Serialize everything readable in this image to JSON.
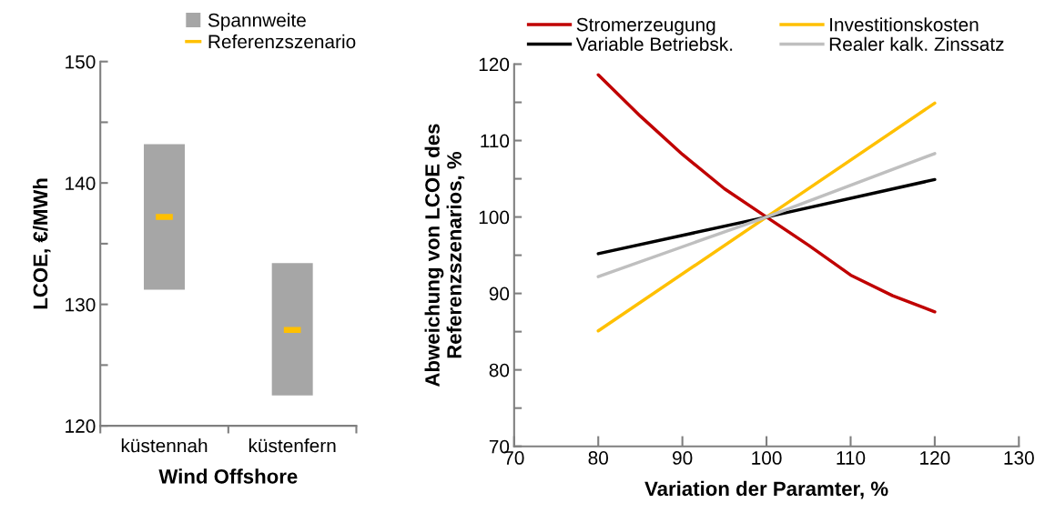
{
  "chart_data": [
    {
      "type": "bar",
      "xlabel": "Wind Offshore",
      "ylabel": "LCOE, €/MWh",
      "categories": [
        "küstennah",
        "küstenfern"
      ],
      "series": [
        {
          "name": "Spannweite",
          "type": "bar",
          "color": "#a6a6a6",
          "base": [
            131.2,
            122.5
          ],
          "values": [
            12.0,
            10.9
          ]
        },
        {
          "name": "Referenzszenario",
          "type": "scatter",
          "color": "#ffc000",
          "values": [
            137.2,
            127.9
          ]
        }
      ],
      "ylim": [
        120,
        150
      ],
      "yticks": [
        120,
        {
          "value": 125,
          "label": null
        },
        130,
        {
          "value": 135,
          "label": null
        },
        140,
        {
          "value": 145,
          "label": null
        },
        150
      ],
      "grid": false,
      "legend": "top"
    },
    {
      "type": "line",
      "xlabel": "Variation der Paramter, %",
      "ylabel": "Abweichung von LCOE des\nReferenzszenarios, %",
      "series": [
        {
          "name": "Stromerzeugung",
          "color": "#c00000",
          "x": [
            80,
            85,
            90,
            95,
            100,
            105,
            110,
            115,
            120
          ],
          "values": [
            118.6,
            113.2,
            108.2,
            103.7,
            100,
            96.3,
            92.4,
            89.7,
            87.6
          ]
        },
        {
          "name": "Investitionskosten",
          "color": "#ffc000",
          "x": [
            80,
            100,
            120
          ],
          "values": [
            85.1,
            100,
            114.9
          ]
        },
        {
          "name": "Variable Betriebsk.",
          "color": "#000000",
          "x": [
            80,
            100,
            120
          ],
          "values": [
            95.2,
            100,
            104.9
          ]
        },
        {
          "name": "Realer kalk. Zinssatz",
          "color": "#bfbfbf",
          "x": [
            80,
            100,
            120
          ],
          "values": [
            92.2,
            100,
            108.3
          ]
        }
      ],
      "xlim": [
        70,
        130
      ],
      "xticks": [
        70,
        80,
        90,
        100,
        110,
        120,
        130
      ],
      "ylim": [
        70,
        120
      ],
      "yticks": [
        70,
        {
          "value": 75,
          "label": null
        },
        80,
        {
          "value": 85,
          "label": null
        },
        90,
        {
          "value": 95,
          "label": null
        },
        100,
        {
          "value": 105,
          "label": null
        },
        110,
        {
          "value": 115,
          "label": null
        },
        120
      ],
      "grid": false,
      "legend": "top",
      "line_style": "solid",
      "marker": "none"
    }
  ]
}
